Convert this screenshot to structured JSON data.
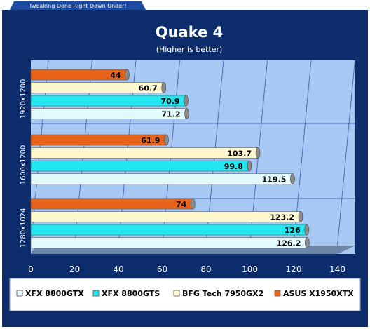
{
  "header": {
    "tagline": "Tweaking Done Right Down Under!"
  },
  "colors": {
    "frame": "#0c2c6c",
    "plot_bg": "#a8c8f4",
    "floor": "#6e86a8",
    "grid": "#4a6ab0",
    "axis_text": "#ffffff"
  },
  "chart_data": {
    "type": "bar",
    "orientation": "horizontal",
    "title": "Quake 4",
    "subtitle": "(Higher is better)",
    "categories": [
      "1920x1200",
      "1600x1200",
      "1280x1024"
    ],
    "xlim": [
      0,
      140
    ],
    "xticks": [
      0,
      20,
      40,
      60,
      80,
      100,
      120,
      140
    ],
    "grid": true,
    "legend_position": "bottom",
    "series": [
      {
        "name": "ASUS X1950XTX",
        "color": "#e8621a",
        "values": [
          44,
          61.9,
          74
        ],
        "labels": [
          "44",
          "61.9",
          "74"
        ]
      },
      {
        "name": "BFG Tech 7950GX2",
        "color": "#fdf8d0",
        "values": [
          60.7,
          103.7,
          123.2
        ],
        "labels": [
          "60.7",
          "103.7",
          "123.2"
        ]
      },
      {
        "name": "XFX 8800GTS",
        "color": "#22e6f0",
        "values": [
          70.9,
          99.8,
          126
        ],
        "labels": [
          "70.9",
          "99.8",
          "126"
        ]
      },
      {
        "name": "XFX 8800GTX",
        "color": "#e2fafc",
        "values": [
          71.2,
          119.5,
          126.2
        ],
        "labels": [
          "71.2",
          "119.5",
          "126.2"
        ]
      }
    ],
    "legend_order": [
      "XFX 8800GTX",
      "XFX 8800GTS",
      "BFG Tech 7950GX2",
      "ASUS X1950XTX"
    ]
  }
}
